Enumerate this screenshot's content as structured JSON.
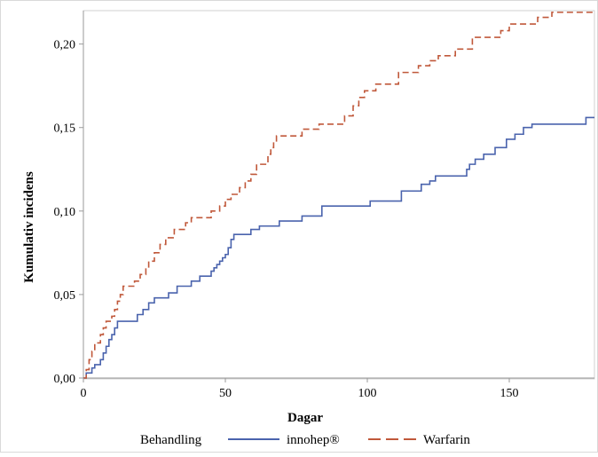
{
  "chart_data": {
    "type": "line",
    "step": true,
    "title": "",
    "xlabel": "Dagar",
    "ylabel": "Kumulativ incidens",
    "xlim": [
      0,
      180
    ],
    "ylim": [
      0,
      0.22
    ],
    "x_ticks": [
      0,
      50,
      100,
      150
    ],
    "x_tick_labels": [
      "0",
      "50",
      "100",
      "150"
    ],
    "y_ticks": [
      0,
      0.05,
      0.1,
      0.15,
      0.2
    ],
    "y_tick_labels": [
      "0,00",
      "0,05",
      "0,10",
      "0,15",
      "0,20"
    ],
    "grid": false,
    "legend": {
      "title": "Behandling",
      "placement": "bottom"
    },
    "series": [
      {
        "name": "innohep®",
        "color": "#4a63ad",
        "dash": "solid",
        "points": [
          [
            0,
            0
          ],
          [
            1,
            0.003
          ],
          [
            3,
            0.006
          ],
          [
            4,
            0.008
          ],
          [
            6,
            0.011
          ],
          [
            7,
            0.015
          ],
          [
            8,
            0.019
          ],
          [
            9,
            0.023
          ],
          [
            10,
            0.026
          ],
          [
            11,
            0.03
          ],
          [
            12,
            0.034
          ],
          [
            19,
            0.038
          ],
          [
            21,
            0.041
          ],
          [
            23,
            0.045
          ],
          [
            25,
            0.048
          ],
          [
            30,
            0.051
          ],
          [
            33,
            0.055
          ],
          [
            38,
            0.058
          ],
          [
            41,
            0.061
          ],
          [
            45,
            0.064
          ],
          [
            46,
            0.066
          ],
          [
            47,
            0.068
          ],
          [
            48,
            0.07
          ],
          [
            49,
            0.072
          ],
          [
            50,
            0.074
          ],
          [
            51,
            0.078
          ],
          [
            52,
            0.083
          ],
          [
            53,
            0.086
          ],
          [
            59,
            0.089
          ],
          [
            62,
            0.091
          ],
          [
            69,
            0.094
          ],
          [
            77,
            0.097
          ],
          [
            84,
            0.103
          ],
          [
            101,
            0.106
          ],
          [
            112,
            0.112
          ],
          [
            119,
            0.116
          ],
          [
            122,
            0.118
          ],
          [
            124,
            0.121
          ],
          [
            135,
            0.125
          ],
          [
            136,
            0.128
          ],
          [
            138,
            0.131
          ],
          [
            141,
            0.134
          ],
          [
            145,
            0.138
          ],
          [
            149,
            0.143
          ],
          [
            152,
            0.146
          ],
          [
            155,
            0.15
          ],
          [
            158,
            0.152
          ],
          [
            177,
            0.156
          ],
          [
            180,
            0.156
          ]
        ]
      },
      {
        "name": "Warfarin",
        "color": "#c0583a",
        "dash": "dashed",
        "points": [
          [
            0,
            0
          ],
          [
            1,
            0.005
          ],
          [
            2,
            0.011
          ],
          [
            3,
            0.016
          ],
          [
            4,
            0.021
          ],
          [
            6,
            0.026
          ],
          [
            7,
            0.03
          ],
          [
            8,
            0.034
          ],
          [
            10,
            0.037
          ],
          [
            11,
            0.041
          ],
          [
            12,
            0.046
          ],
          [
            13,
            0.05
          ],
          [
            14,
            0.055
          ],
          [
            18,
            0.058
          ],
          [
            20,
            0.062
          ],
          [
            22,
            0.066
          ],
          [
            23,
            0.07
          ],
          [
            25,
            0.075
          ],
          [
            27,
            0.08
          ],
          [
            29,
            0.084
          ],
          [
            32,
            0.089
          ],
          [
            36,
            0.093
          ],
          [
            38,
            0.096
          ],
          [
            45,
            0.1
          ],
          [
            48,
            0.103
          ],
          [
            50,
            0.107
          ],
          [
            52,
            0.11
          ],
          [
            55,
            0.114
          ],
          [
            57,
            0.118
          ],
          [
            59,
            0.122
          ],
          [
            61,
            0.128
          ],
          [
            65,
            0.134
          ],
          [
            66,
            0.138
          ],
          [
            67,
            0.142
          ],
          [
            68,
            0.145
          ],
          [
            77,
            0.149
          ],
          [
            83,
            0.152
          ],
          [
            92,
            0.157
          ],
          [
            95,
            0.163
          ],
          [
            97,
            0.168
          ],
          [
            99,
            0.172
          ],
          [
            103,
            0.176
          ],
          [
            111,
            0.183
          ],
          [
            118,
            0.187
          ],
          [
            122,
            0.19
          ],
          [
            125,
            0.193
          ],
          [
            131,
            0.197
          ],
          [
            137,
            0.204
          ],
          [
            147,
            0.208
          ],
          [
            150,
            0.212
          ],
          [
            160,
            0.216
          ],
          [
            165,
            0.219
          ],
          [
            180,
            0.219
          ]
        ]
      }
    ]
  }
}
